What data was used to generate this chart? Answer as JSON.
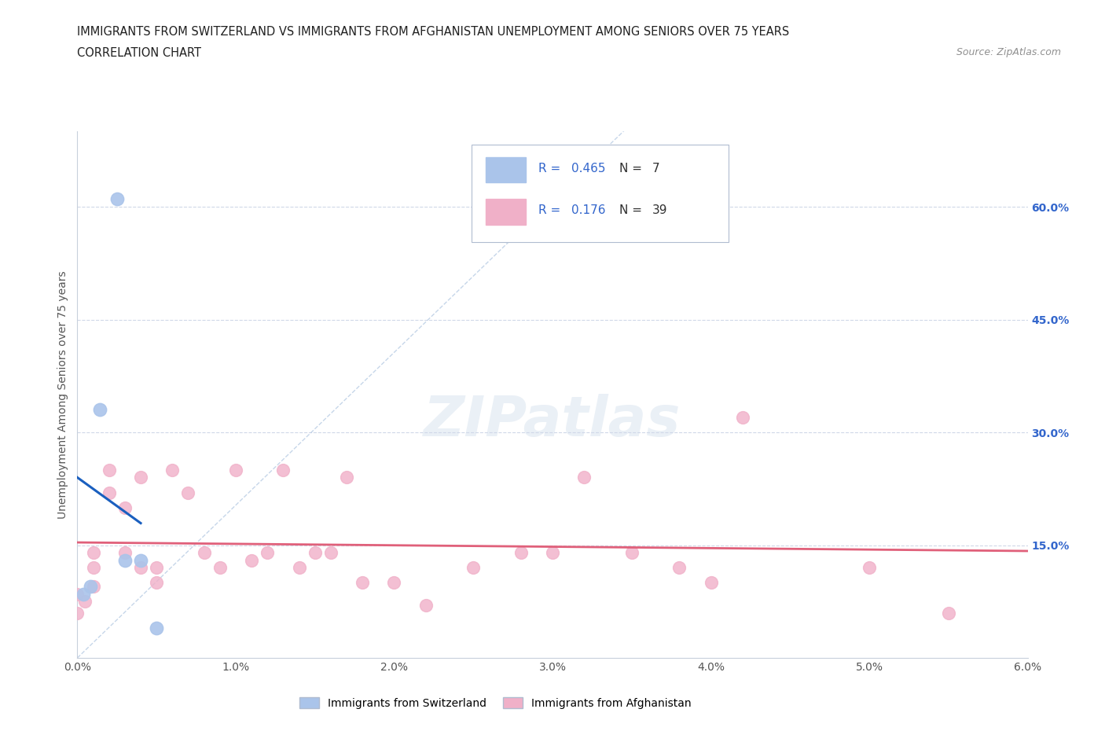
{
  "title_line1": "IMMIGRANTS FROM SWITZERLAND VS IMMIGRANTS FROM AFGHANISTAN UNEMPLOYMENT AMONG SENIORS OVER 75 YEARS",
  "title_line2": "CORRELATION CHART",
  "source_text": "Source: ZipAtlas.com",
  "ylabel": "Unemployment Among Seniors over 75 years",
  "xlim": [
    0.0,
    0.06
  ],
  "ylim": [
    0.0,
    0.7
  ],
  "xtick_labels": [
    "0.0%",
    "1.0%",
    "2.0%",
    "3.0%",
    "4.0%",
    "5.0%",
    "6.0%"
  ],
  "xtick_values": [
    0.0,
    0.01,
    0.02,
    0.03,
    0.04,
    0.05,
    0.06
  ],
  "ytick_values": [
    0.15,
    0.3,
    0.45,
    0.6
  ],
  "ytick_labels": [
    "15.0%",
    "30.0%",
    "45.0%",
    "60.0%"
  ],
  "switzerland_color": "#aac4ea",
  "afghanistan_color": "#f0b0c8",
  "switzerland_line_color": "#1a5fbf",
  "afghanistan_line_color": "#e0607a",
  "dash_line_color": "#b8cce4",
  "R_switzerland": 0.465,
  "N_switzerland": 7,
  "R_afghanistan": 0.176,
  "N_afghanistan": 39,
  "sw_x": [
    0.0004,
    0.0008,
    0.0014,
    0.0025,
    0.003,
    0.004,
    0.005
  ],
  "sw_y": [
    0.085,
    0.095,
    0.33,
    0.61,
    0.13,
    0.13,
    0.04
  ],
  "af_x": [
    0.0,
    0.0,
    0.0005,
    0.001,
    0.001,
    0.001,
    0.002,
    0.002,
    0.003,
    0.003,
    0.004,
    0.004,
    0.005,
    0.005,
    0.006,
    0.007,
    0.008,
    0.009,
    0.01,
    0.011,
    0.012,
    0.013,
    0.014,
    0.015,
    0.016,
    0.017,
    0.018,
    0.02,
    0.022,
    0.025,
    0.028,
    0.03,
    0.032,
    0.035,
    0.038,
    0.04,
    0.042,
    0.05,
    0.055
  ],
  "af_y": [
    0.085,
    0.06,
    0.075,
    0.095,
    0.12,
    0.14,
    0.25,
    0.22,
    0.2,
    0.14,
    0.12,
    0.24,
    0.1,
    0.12,
    0.25,
    0.22,
    0.14,
    0.12,
    0.25,
    0.13,
    0.14,
    0.25,
    0.12,
    0.14,
    0.14,
    0.24,
    0.1,
    0.1,
    0.07,
    0.12,
    0.14,
    0.14,
    0.24,
    0.14,
    0.12,
    0.1,
    0.32,
    0.12,
    0.06
  ],
  "watermark_text": "ZIPatlas",
  "background_color": "#ffffff",
  "grid_color": "#d0d8e8"
}
